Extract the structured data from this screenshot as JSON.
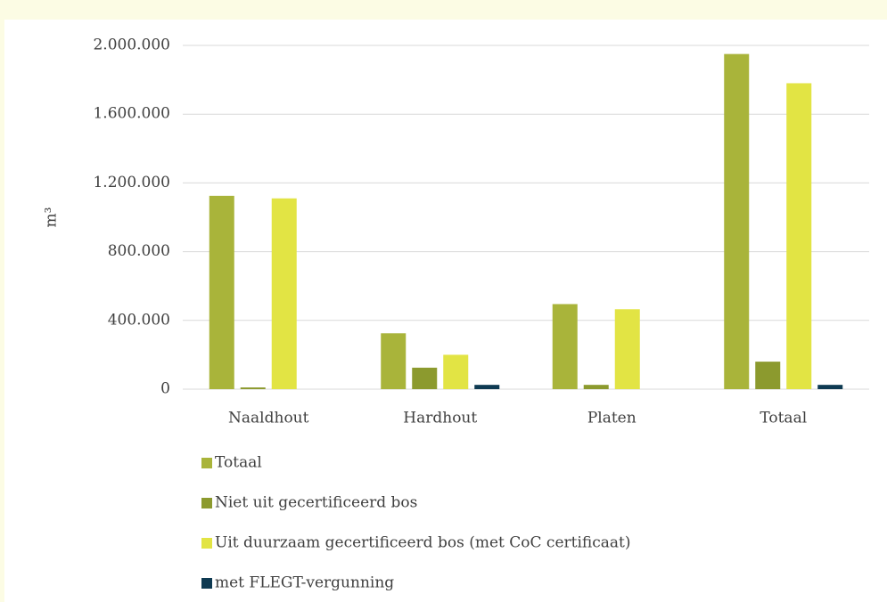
{
  "chart_data": {
    "type": "bar",
    "y_label": "m³",
    "categories": [
      "Naaldhout",
      "Hardhout",
      "Platen",
      "Totaal"
    ],
    "series": [
      {
        "name": "Totaal",
        "color": "#a9b43a",
        "values": [
          1125000,
          325000,
          495000,
          1950000
        ]
      },
      {
        "name": "Niet uit gecertificeerd bos",
        "color": "#8c9a2e",
        "values": [
          10000,
          125000,
          25000,
          160000
        ]
      },
      {
        "name": "Uit duurzaam gecertificeerd bos (met CoC certificaat)",
        "color": "#e2e444",
        "values": [
          1110000,
          200000,
          465000,
          1780000
        ]
      },
      {
        "name": "met FLEGT-vergunning",
        "color": "#0e3a52",
        "values": [
          0,
          25000,
          0,
          25000
        ]
      }
    ],
    "ylim": [
      0,
      2000000
    ],
    "yticks": [
      0,
      {
        "value": 400000,
        "label": "400.000"
      },
      {
        "value": 800000,
        "label": "800.000"
      },
      {
        "value": 1200000,
        "label": "1.200.000"
      },
      {
        "value": 1600000,
        "label": "1.600.000"
      },
      {
        "value": 2000000,
        "label": "2.000.000"
      }
    ],
    "grid": true,
    "legend": "bottom"
  }
}
